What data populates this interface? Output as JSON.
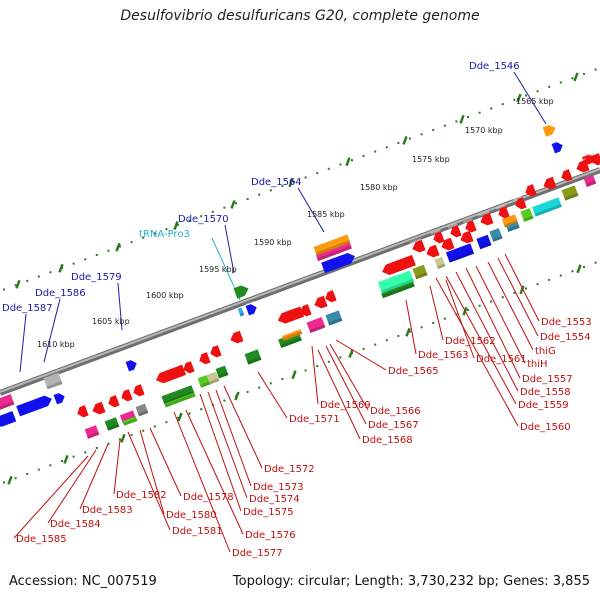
{
  "title": "Desulfovibrio desulfuricans G20, complete genome",
  "footer": {
    "accession": "Accession: NC_007519",
    "summary": "Topology: circular; Length: 3,730,232 bp; Genes: 3,855"
  },
  "kbp_labels": [
    "1565 kbp",
    "1570 kbp",
    "1575 kbp",
    "1580 kbp",
    "1585 kbp",
    "1590 kbp",
    "1595 kbp",
    "1600 kbp",
    "1605 kbp",
    "1610 kbp"
  ],
  "top_gene_labels": [
    "Dde_1546",
    "Dde_1564",
    "Dde_1570",
    "Dde_1579",
    "Dde_1586",
    "Dde_1587"
  ],
  "trna_label": "tRNA-Pro3",
  "bottom_gene_labels": [
    "Dde_1553",
    "Dde_1554",
    "thiG",
    "thiH",
    "Dde_1557",
    "Dde_1558",
    "Dde_1559",
    "Dde_1560",
    "Dde_1562",
    "Dde_1561",
    "Dde_1563",
    "Dde_1565",
    "Dde_1566",
    "Dde_1569",
    "Dde_1567",
    "Dde_1568",
    "Dde_1571",
    "Dde_1572",
    "Dde_1573",
    "Dde_1574",
    "Dde_1575",
    "Dde_1576",
    "Dde_1577",
    "Dde_1578",
    "Dde_1580",
    "Dde_1581",
    "Dde_1582",
    "Dde_1583",
    "Dde_1584",
    "Dde_1585"
  ],
  "colors": {
    "backbone": "#8a8a8a",
    "tick": "#2a7a1e",
    "red": "#ee1111",
    "blue": "#1111ee",
    "pink": "#ee2a90",
    "orange": "#ff9a10",
    "green": "#1f8a1f",
    "lime": "#55cc22",
    "teal": "#3a8aaa",
    "cyan": "#19d8d8",
    "mint": "#33ffaa",
    "gray": "#b4b4b4",
    "olive": "#8a9a1a",
    "tan": "#c8c890",
    "magenta": "#ff55cc"
  }
}
